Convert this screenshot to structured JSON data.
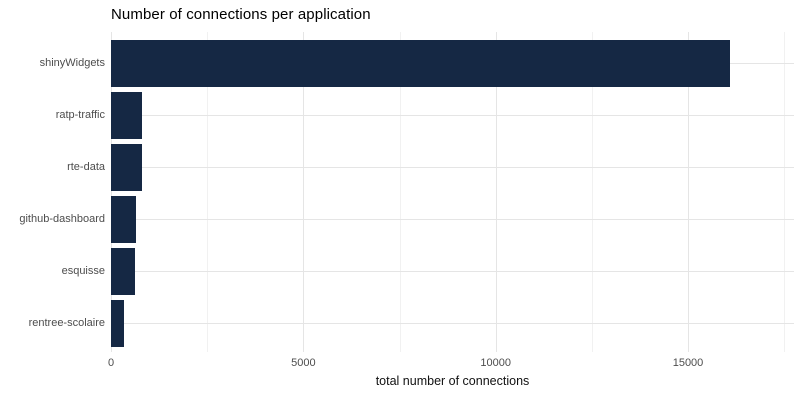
{
  "title": "Number of connections per application",
  "chart_data": {
    "type": "bar",
    "orientation": "horizontal",
    "title": "Number of connections per application",
    "xlabel": "total number of connections",
    "ylabel": "",
    "categories": [
      "shinyWidgets",
      "ratp-traffic",
      "rte-data",
      "github-dashboard",
      "esquisse",
      "rentree-scolaire"
    ],
    "values": [
      16100,
      810,
      795,
      655,
      630,
      340
    ],
    "xlim": [
      0,
      17750
    ],
    "x_ticks": [
      0,
      5000,
      10000,
      15000
    ],
    "x_minor_ticks": [
      2500,
      7500,
      12500,
      17500
    ],
    "grid": true,
    "legend": "none",
    "colors": {
      "bar": "#152844",
      "grid_major": "#e5e5e5",
      "grid_minor": "#f1f1f1",
      "axis_text": "#4d4d4d",
      "axis_title": "#111111",
      "title_text": "#000000",
      "background": "#ffffff"
    }
  }
}
